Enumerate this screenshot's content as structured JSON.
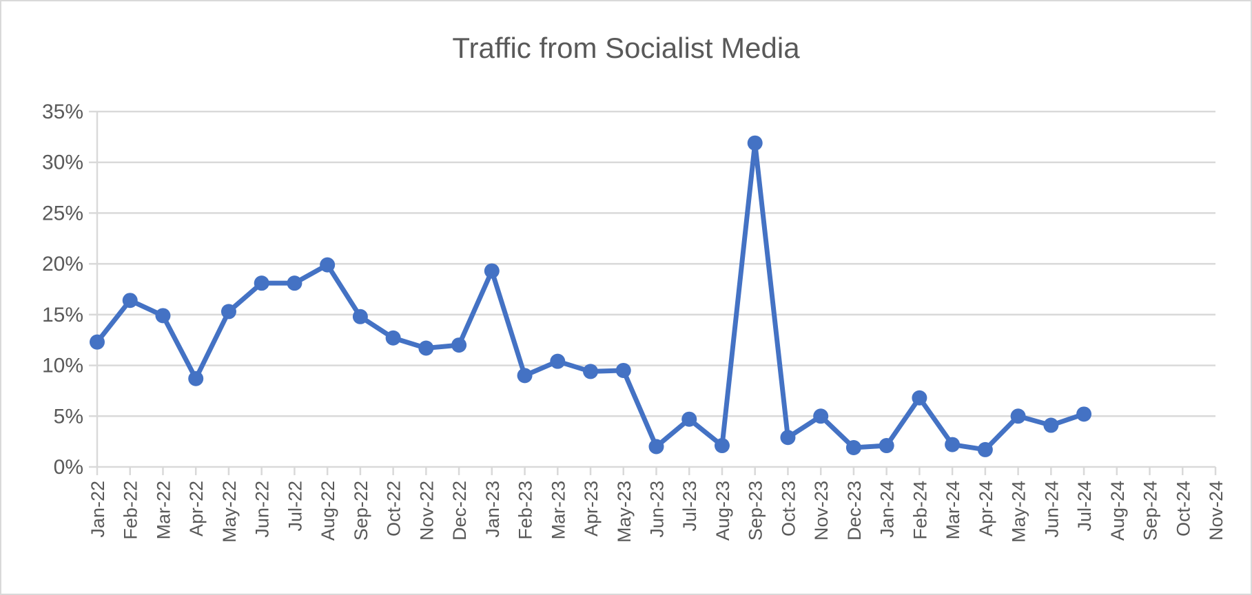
{
  "chart_data": {
    "type": "line",
    "title": "Traffic from Socialist Media",
    "xlabel": "",
    "ylabel": "",
    "categories": [
      "Jan-22",
      "Feb-22",
      "Mar-22",
      "Apr-22",
      "May-22",
      "Jun-22",
      "Jul-22",
      "Aug-22",
      "Sep-22",
      "Oct-22",
      "Nov-22",
      "Dec-22",
      "Jan-23",
      "Feb-23",
      "Mar-23",
      "Apr-23",
      "May-23",
      "Jun-23",
      "Jul-23",
      "Aug-23",
      "Sep-23",
      "Oct-23",
      "Nov-23",
      "Dec-23",
      "Jan-24",
      "Feb-24",
      "Mar-24",
      "Apr-24",
      "May-24",
      "Jun-24",
      "Jul-24",
      "Aug-24",
      "Sep-24",
      "Oct-24",
      "Nov-24"
    ],
    "values": [
      12.3,
      16.4,
      14.9,
      8.7,
      15.3,
      18.1,
      18.1,
      19.9,
      14.8,
      12.7,
      11.7,
      12.0,
      19.3,
      9.0,
      10.4,
      9.4,
      9.5,
      2.0,
      4.7,
      2.1,
      31.9,
      2.9,
      5.0,
      1.9,
      2.1,
      6.8,
      2.2,
      1.7,
      5.0,
      4.1,
      5.2,
      null,
      null,
      null,
      null
    ],
    "ylim": [
      0,
      35
    ],
    "yticks": [
      "0%",
      "5%",
      "10%",
      "15%",
      "20%",
      "25%",
      "30%",
      "35%"
    ],
    "grid": true,
    "legend": "none",
    "series_color": "#4472c4",
    "markers": true
  }
}
